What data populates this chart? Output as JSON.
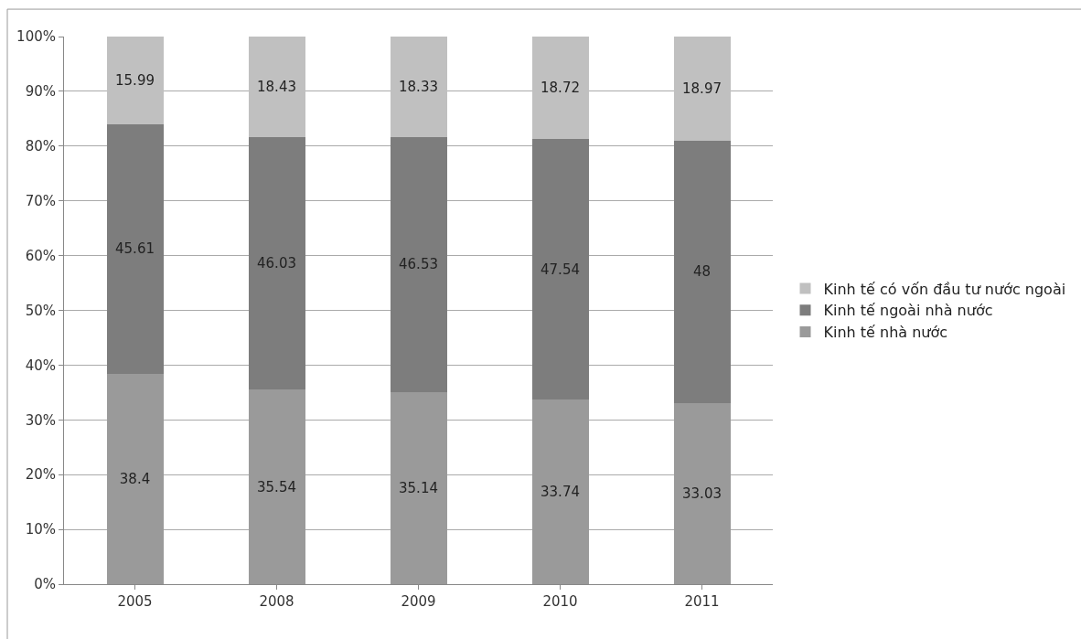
{
  "chart_data": {
    "type": "bar",
    "stacked": true,
    "categories": [
      "2005",
      "2008",
      "2009",
      "2010",
      "2011"
    ],
    "series": [
      {
        "name": "Kinh tế nhà nước",
        "color": "#9a9a9a",
        "values": [
          38.4,
          35.54,
          35.14,
          33.74,
          33.03
        ]
      },
      {
        "name": "Kinh tế ngoài nhà nước",
        "color": "#7d7d7d",
        "values": [
          45.61,
          46.03,
          46.53,
          47.54,
          48
        ]
      },
      {
        "name": "Kinh tế có vốn đầu tư nước ngoài",
        "color": "#c0c0c0",
        "values": [
          15.99,
          18.43,
          18.33,
          18.72,
          18.97
        ]
      }
    ],
    "ylim": [
      0,
      100
    ],
    "yticks": [
      {
        "value": 0,
        "label": "0%"
      },
      {
        "value": 10,
        "label": "10%"
      },
      {
        "value": 20,
        "label": "20%"
      },
      {
        "value": 30,
        "label": "30%"
      },
      {
        "value": 40,
        "label": "40%"
      },
      {
        "value": 50,
        "label": "50%"
      },
      {
        "value": 60,
        "label": "60%"
      },
      {
        "value": 70,
        "label": "70%"
      },
      {
        "value": 80,
        "label": "80%"
      },
      {
        "value": 90,
        "label": "90%"
      },
      {
        "value": 100,
        "label": "100%"
      }
    ],
    "grid": "y",
    "legend": "right",
    "data_labels": true
  }
}
